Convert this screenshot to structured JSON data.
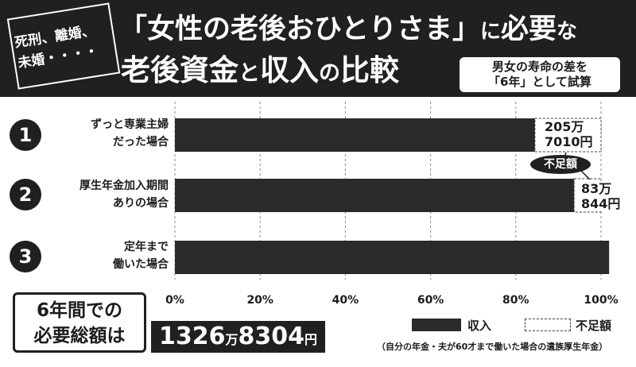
{
  "header": {
    "tag": "死刑、離婚、\n未婚・・・・",
    "title_line1": {
      "part1": "「女性の老後おひとりさま」",
      "part2": "に",
      "part3": "必要",
      "part4": "な"
    },
    "title_line2": {
      "part1": "老後資金",
      "part2": "と",
      "part3": "収入",
      "part4": "の",
      "part5": "比較"
    },
    "note_line1": "男女の寿命の差を",
    "note_line2": "「6年」として試算"
  },
  "colors": {
    "dark": "#202020",
    "bar": "#2a2a2a",
    "background": "#ffffff",
    "grid": "#888888"
  },
  "chart_data": {
    "type": "bar",
    "orientation": "horizontal",
    "stacked": true,
    "categories": [
      {
        "num": "1",
        "label_line1": "ずっと専業主婦",
        "label_line2": "だった場合"
      },
      {
        "num": "2",
        "label_line1": "厚生年金加入期間",
        "label_line2": "ありの場合"
      },
      {
        "num": "3",
        "label_line1": "定年まで",
        "label_line2": "働いた場合"
      }
    ],
    "series": [
      {
        "name": "収入",
        "values": [
          84.5,
          93.7,
          101.9
        ],
        "style": "solid"
      },
      {
        "name": "不足額",
        "values": [
          15.5,
          6.3,
          0
        ],
        "style": "dashed"
      }
    ],
    "xlim": [
      0,
      100
    ],
    "xticks": [
      "0%",
      "20%",
      "40%",
      "60%",
      "80%",
      "100%"
    ],
    "grid": true,
    "annotations": [
      {
        "line1": "205万",
        "line2": "7010円"
      },
      {
        "line1": "83万",
        "line2": "844円"
      }
    ],
    "shortfall_label": "不足額"
  },
  "total": {
    "label_line1": "6年間での",
    "label_line2": "必要総額は",
    "value_num1": "1326",
    "value_unit1": "万",
    "value_num2": "8304",
    "value_unit2": "円"
  },
  "legend": {
    "income": "収入",
    "shortfall": "不足額"
  },
  "footnote": "（自分の年金・夫が60才まで働いた場合の遺族厚生年金）"
}
